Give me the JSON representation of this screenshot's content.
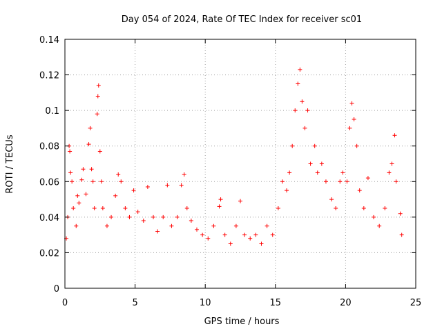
{
  "chart_data": {
    "type": "scatter",
    "title": "Day 054 of 2024, Rate Of TEC Index for receiver sc01",
    "xlabel": "GPS time / hours",
    "ylabel": "ROTI / TECUs",
    "xlim": [
      0,
      25
    ],
    "ylim": [
      0,
      0.14
    ],
    "x_ticks": [
      0,
      5,
      10,
      15,
      20,
      25
    ],
    "x_tick_labels": [
      "0",
      "5",
      "10",
      "15",
      "20",
      "25"
    ],
    "y_ticks": [
      0,
      0.02,
      0.04,
      0.06,
      0.08,
      0.1,
      0.12,
      0.14
    ],
    "y_tick_labels": [
      "0",
      "0.02",
      "0.04",
      "0.06",
      "0.08",
      "0.1",
      "0.12",
      "0.14"
    ],
    "grid": true,
    "marker": "+",
    "color": "#ff0000",
    "series": [
      {
        "name": "ROTI",
        "points": [
          [
            0.1,
            0.028
          ],
          [
            0.2,
            0.04
          ],
          [
            0.3,
            0.08
          ],
          [
            0.35,
            0.077
          ],
          [
            0.4,
            0.065
          ],
          [
            0.5,
            0.06
          ],
          [
            0.6,
            0.045
          ],
          [
            0.8,
            0.035
          ],
          [
            0.9,
            0.052
          ],
          [
            1.0,
            0.048
          ],
          [
            1.2,
            0.061
          ],
          [
            1.3,
            0.067
          ],
          [
            1.5,
            0.053
          ],
          [
            1.7,
            0.081
          ],
          [
            1.8,
            0.09
          ],
          [
            1.9,
            0.067
          ],
          [
            2.0,
            0.06
          ],
          [
            2.1,
            0.045
          ],
          [
            2.3,
            0.098
          ],
          [
            2.35,
            0.108
          ],
          [
            2.4,
            0.114
          ],
          [
            2.5,
            0.077
          ],
          [
            2.6,
            0.06
          ],
          [
            2.7,
            0.045
          ],
          [
            3.0,
            0.035
          ],
          [
            3.3,
            0.04
          ],
          [
            3.6,
            0.052
          ],
          [
            3.8,
            0.064
          ],
          [
            4.0,
            0.06
          ],
          [
            4.3,
            0.045
          ],
          [
            4.6,
            0.04
          ],
          [
            4.9,
            0.055
          ],
          [
            5.2,
            0.043
          ],
          [
            5.6,
            0.038
          ],
          [
            5.9,
            0.057
          ],
          [
            6.3,
            0.04
          ],
          [
            6.6,
            0.032
          ],
          [
            7.0,
            0.04
          ],
          [
            7.3,
            0.058
          ],
          [
            7.6,
            0.035
          ],
          [
            8.0,
            0.04
          ],
          [
            8.3,
            0.058
          ],
          [
            8.5,
            0.064
          ],
          [
            8.7,
            0.045
          ],
          [
            9.0,
            0.038
          ],
          [
            9.4,
            0.033
          ],
          [
            9.8,
            0.03
          ],
          [
            10.2,
            0.028
          ],
          [
            10.6,
            0.035
          ],
          [
            11.0,
            0.046
          ],
          [
            11.1,
            0.05
          ],
          [
            11.4,
            0.03
          ],
          [
            11.8,
            0.025
          ],
          [
            12.2,
            0.035
          ],
          [
            12.5,
            0.049
          ],
          [
            12.8,
            0.03
          ],
          [
            13.2,
            0.028
          ],
          [
            13.6,
            0.03
          ],
          [
            14.0,
            0.025
          ],
          [
            14.4,
            0.035
          ],
          [
            14.8,
            0.03
          ],
          [
            15.2,
            0.045
          ],
          [
            15.5,
            0.06
          ],
          [
            15.8,
            0.055
          ],
          [
            16.0,
            0.065
          ],
          [
            16.2,
            0.08
          ],
          [
            16.4,
            0.1
          ],
          [
            16.6,
            0.115
          ],
          [
            16.75,
            0.123
          ],
          [
            16.9,
            0.105
          ],
          [
            17.1,
            0.09
          ],
          [
            17.3,
            0.1
          ],
          [
            17.5,
            0.07
          ],
          [
            17.8,
            0.08
          ],
          [
            18.0,
            0.065
          ],
          [
            18.3,
            0.07
          ],
          [
            18.6,
            0.06
          ],
          [
            19.0,
            0.05
          ],
          [
            19.3,
            0.045
          ],
          [
            19.6,
            0.06
          ],
          [
            19.8,
            0.065
          ],
          [
            20.1,
            0.06
          ],
          [
            20.3,
            0.09
          ],
          [
            20.45,
            0.104
          ],
          [
            20.6,
            0.095
          ],
          [
            20.8,
            0.08
          ],
          [
            21.0,
            0.055
          ],
          [
            21.3,
            0.045
          ],
          [
            21.6,
            0.062
          ],
          [
            22.0,
            0.04
          ],
          [
            22.4,
            0.035
          ],
          [
            22.8,
            0.045
          ],
          [
            23.1,
            0.065
          ],
          [
            23.3,
            0.07
          ],
          [
            23.5,
            0.086
          ],
          [
            23.6,
            0.06
          ],
          [
            23.9,
            0.042
          ],
          [
            24.0,
            0.03
          ]
        ]
      }
    ]
  }
}
